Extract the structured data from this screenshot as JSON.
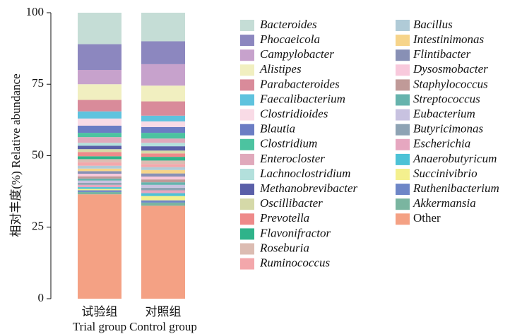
{
  "chart_data": {
    "type": "stacked_bar",
    "ylabel": "相对丰度(%) Relative abundance",
    "categories": [
      [
        "试验组",
        "Trial group"
      ],
      [
        "对照组",
        "Control group"
      ]
    ],
    "ylim": [
      0,
      100
    ],
    "yticks": [
      0,
      25,
      50,
      75,
      100
    ],
    "series": [
      {
        "name": "Bacteroides",
        "color": "#c5ddd6",
        "values": [
          11,
          10
        ]
      },
      {
        "name": "Phocaeicola",
        "color": "#8c87bf",
        "values": [
          9,
          8
        ]
      },
      {
        "name": "Campylobacter",
        "color": "#c7a2cc",
        "values": [
          5,
          7.5
        ]
      },
      {
        "name": "Alistipes",
        "color": "#f1efc0",
        "values": [
          5.5,
          5.5
        ]
      },
      {
        "name": "Parabacteroides",
        "color": "#d98b9a",
        "values": [
          4,
          5
        ]
      },
      {
        "name": "Faecalibacterium",
        "color": "#5fc3de",
        "values": [
          2.5,
          2
        ]
      },
      {
        "name": "Clostridioides",
        "color": "#f9dbe6",
        "values": [
          2.5,
          2
        ]
      },
      {
        "name": "Blautia",
        "color": "#6b7dc4",
        "values": [
          2.5,
          2
        ]
      },
      {
        "name": "Clostridium",
        "color": "#4cc3a0",
        "values": [
          1.5,
          2
        ]
      },
      {
        "name": "Enterocloster",
        "color": "#e0a9bb",
        "values": [
          2,
          1.5
        ]
      },
      {
        "name": "Lachnoclostridium",
        "color": "#b3e0dc",
        "values": [
          1.0,
          1.2
        ]
      },
      {
        "name": "Methanobrevibacter",
        "color": "#5a5fa8",
        "values": [
          1.2,
          1.5
        ]
      },
      {
        "name": "Oscillibacter",
        "color": "#d5d9a8",
        "values": [
          1.0,
          1.0
        ]
      },
      {
        "name": "Prevotella",
        "color": "#ee8a8a",
        "values": [
          1.5,
          1.2
        ]
      },
      {
        "name": "Flavonifractor",
        "color": "#2fb38a",
        "values": [
          1.0,
          1.3
        ]
      },
      {
        "name": "Roseburia",
        "color": "#dcbcb2",
        "values": [
          1.1,
          1.2
        ]
      },
      {
        "name": "Ruminococcus",
        "color": "#f3a7ab",
        "values": [
          1.2,
          1.1
        ]
      },
      {
        "name": "Bacillus",
        "color": "#b0cbd7",
        "values": [
          1.0,
          1.0
        ]
      },
      {
        "name": "Intestinimonas",
        "color": "#f6d48a",
        "values": [
          0.9,
          1.2
        ]
      },
      {
        "name": "Flintibacter",
        "color": "#8890b5",
        "values": [
          0.9,
          1.1
        ]
      },
      {
        "name": "Dysosmobacter",
        "color": "#f8c9dc",
        "values": [
          0.9,
          1.0
        ]
      },
      {
        "name": "Staphylococcus",
        "color": "#c09a98",
        "values": [
          0.8,
          1.0
        ]
      },
      {
        "name": "Streptococcus",
        "color": "#66b3ad",
        "values": [
          0.7,
          0.9
        ]
      },
      {
        "name": "Eubacterium",
        "color": "#c8c2e0",
        "values": [
          0.8,
          1.0
        ]
      },
      {
        "name": "Butyricimonas",
        "color": "#8ea3b4",
        "values": [
          0.7,
          0.9
        ]
      },
      {
        "name": "Escherichia",
        "color": "#e6a7c0",
        "values": [
          0.8,
          1.0
        ]
      },
      {
        "name": "Anaerobutyricum",
        "color": "#4dc2d6",
        "values": [
          0.6,
          1.0
        ]
      },
      {
        "name": "Succinivibrio",
        "color": "#f4f08e",
        "values": [
          0.5,
          1.5
        ]
      },
      {
        "name": "Ruthenibacterium",
        "color": "#6e86c7",
        "values": [
          0.6,
          0.8
        ]
      },
      {
        "name": "Akkermansia",
        "color": "#7ab5a0",
        "values": [
          0.8,
          1.1
        ]
      },
      {
        "name": "Other",
        "color": "#f4a184",
        "values": [
          36.5,
          32.5
        ]
      }
    ]
  }
}
